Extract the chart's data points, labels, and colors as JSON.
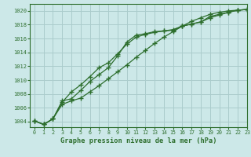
{
  "title": "Graphe pression niveau de la mer (hPa)",
  "background_color": "#cce8e8",
  "grid_color": "#aacccc",
  "line_color": "#2d6e2d",
  "xlim": [
    -0.5,
    23
  ],
  "ylim": [
    1003.2,
    1021.0
  ],
  "yticks": [
    1004,
    1006,
    1008,
    1010,
    1012,
    1014,
    1016,
    1018,
    1020
  ],
  "xticks": [
    0,
    1,
    2,
    3,
    4,
    5,
    6,
    7,
    8,
    9,
    10,
    11,
    12,
    13,
    14,
    15,
    16,
    17,
    18,
    19,
    20,
    21,
    22,
    23
  ],
  "hours": [
    0,
    1,
    2,
    3,
    4,
    5,
    6,
    7,
    8,
    9,
    10,
    11,
    12,
    13,
    14,
    15,
    16,
    17,
    18,
    19,
    20,
    21,
    22,
    23
  ],
  "line1": [
    1004.1,
    1003.6,
    1004.4,
    1007.0,
    1007.3,
    1008.5,
    1009.8,
    1010.8,
    1011.8,
    1013.5,
    1015.5,
    1016.5,
    1016.7,
    1017.0,
    1017.1,
    1017.2,
    1017.8,
    1018.1,
    1018.4,
    1019.2,
    1019.5,
    1019.8,
    1020.1,
    1020.2
  ],
  "line2": [
    1004.1,
    1003.6,
    1004.4,
    1006.8,
    1008.3,
    1009.3,
    1010.5,
    1011.8,
    1012.5,
    1013.8,
    1015.2,
    1016.2,
    1016.6,
    1016.9,
    1017.1,
    1017.3,
    1017.8,
    1018.1,
    1018.4,
    1019.0,
    1019.4,
    1019.8,
    1020.1,
    1020.2
  ],
  "line3": [
    1004.1,
    1003.6,
    1004.4,
    1006.5,
    1007.0,
    1007.4,
    1008.3,
    1009.2,
    1010.2,
    1011.2,
    1012.2,
    1013.3,
    1014.3,
    1015.3,
    1016.2,
    1017.0,
    1017.8,
    1018.5,
    1019.0,
    1019.5,
    1019.8,
    1020.0,
    1020.1,
    1020.2
  ]
}
